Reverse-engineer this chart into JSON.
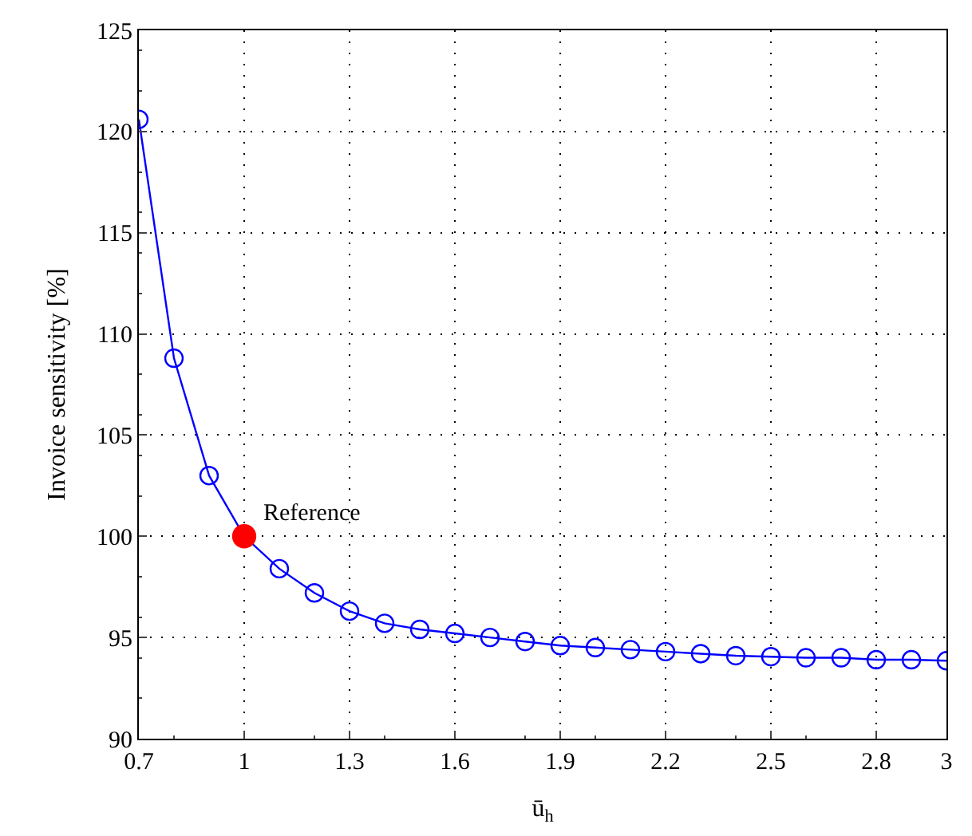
{
  "chart_data": {
    "type": "line",
    "xlabel": "ū$_{h}$",
    "ylabel": "Invoice sensitivity [%]",
    "x": [
      0.7,
      0.8,
      0.9,
      1.0,
      1.1,
      1.2,
      1.3,
      1.4,
      1.5,
      1.6,
      1.7,
      1.8,
      1.9,
      2.0,
      2.1,
      2.2,
      2.3,
      2.4,
      2.5,
      2.6,
      2.7,
      2.8,
      2.9,
      3.0
    ],
    "series": [
      {
        "color": "#0000ff",
        "marker": "circle",
        "values": [
          120.6,
          108.8,
          103.0,
          100.0,
          98.4,
          97.2,
          96.3,
          95.7,
          95.4,
          95.2,
          95.0,
          94.8,
          94.6,
          94.5,
          94.4,
          94.3,
          94.2,
          94.1,
          94.05,
          94.0,
          94.0,
          93.9,
          93.9,
          93.85
        ]
      },
      {
        "type": "scatter",
        "color": "#ff0000",
        "marker": "circle",
        "x": [
          1.0
        ],
        "values": [
          100.0
        ]
      }
    ],
    "annotations": [
      {
        "text": "Reference",
        "x": 1.0,
        "y": 100.0
      }
    ],
    "xlim": [
      0.7,
      3.0
    ],
    "xticks": [
      0.7,
      1,
      1.3,
      1.6,
      1.9,
      2.2,
      2.5,
      2.8,
      3
    ],
    "ylim": [
      90,
      125
    ],
    "yticks": [
      90,
      95,
      100,
      105,
      110,
      115,
      120,
      125
    ],
    "grid": true
  }
}
